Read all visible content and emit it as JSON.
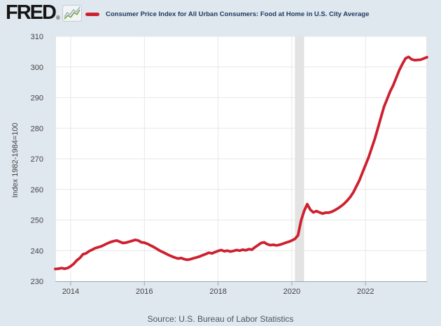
{
  "header": {
    "logo_text": "FRED",
    "registered_mark": "®",
    "series_title": "Consumer Price Index for All Urban Consumers: Food at Home in U.S. City Average"
  },
  "y_axis_title": "Index 1982-1984=100",
  "source_line": "Source: U.S. Bureau of Labor Statistics",
  "colors": {
    "background": "#dfe7ef",
    "plot_background": "#ffffff",
    "series_line": "#ce202f",
    "gridline": "#e7e7e7",
    "axis_line": "#9aa5b1",
    "tick_text": "#444444",
    "title_text": "#1c3a5e",
    "y_axis_title_text": "#444444",
    "source_text": "#4a5560",
    "recession_band": "#e3e3e3",
    "logo_text": "#151515"
  },
  "chart_data": {
    "type": "line",
    "title": "Consumer Price Index for All Urban Consumers: Food at Home in U.S. City Average",
    "ylabel": "Index 1982-1984=100",
    "xlabel": "",
    "units": "Index 1982-1984=100",
    "frequency": "monthly",
    "start_month": "2013-08",
    "end_month": "2023-09",
    "ylim": [
      230,
      310
    ],
    "yticks": [
      230,
      240,
      250,
      260,
      270,
      280,
      290,
      300,
      310
    ],
    "xticks": [
      {
        "label": "2014",
        "month": "2014-01"
      },
      {
        "label": "2016",
        "month": "2016-01"
      },
      {
        "label": "2018",
        "month": "2018-01"
      },
      {
        "label": "2020",
        "month": "2020-01"
      },
      {
        "label": "2022",
        "month": "2022-01"
      }
    ],
    "grid": true,
    "legend_position": "top",
    "recession_band": {
      "start": "2020-02",
      "end": "2020-05"
    },
    "series": [
      {
        "name": "Consumer Price Index for All Urban Consumers: Food at Home in U.S. City Average",
        "color": "#ce202f",
        "values": [
          234.0,
          234.1,
          234.3,
          234.1,
          234.3,
          234.9,
          235.7,
          236.8,
          237.6,
          238.8,
          239.1,
          239.8,
          240.3,
          240.8,
          241.1,
          241.4,
          241.9,
          242.4,
          242.8,
          243.1,
          243.3,
          242.9,
          242.5,
          242.6,
          242.9,
          243.2,
          243.5,
          243.3,
          242.7,
          242.6,
          242.2,
          241.7,
          241.2,
          240.6,
          240.0,
          239.5,
          239.0,
          238.5,
          238.1,
          237.7,
          237.4,
          237.6,
          237.2,
          237.0,
          237.2,
          237.5,
          237.8,
          238.1,
          238.5,
          238.9,
          239.3,
          239.1,
          239.5,
          239.9,
          240.2,
          239.8,
          240.0,
          239.7,
          239.9,
          240.2,
          240.0,
          240.3,
          240.1,
          240.5,
          240.3,
          241.1,
          241.8,
          242.5,
          242.7,
          242.1,
          241.8,
          241.9,
          241.7,
          241.9,
          242.2,
          242.6,
          242.9,
          243.3,
          243.8,
          245.0,
          249.8,
          253.0,
          255.2,
          253.4,
          252.5,
          252.9,
          252.5,
          252.1,
          252.4,
          252.4,
          252.7,
          253.2,
          253.8,
          254.5,
          255.3,
          256.3,
          257.5,
          259.0,
          261.0,
          263.0,
          265.5,
          268.0,
          270.5,
          273.5,
          276.5,
          280.0,
          283.5,
          287.0,
          289.5,
          292.0,
          294.0,
          296.5,
          299.0,
          301.0,
          302.8,
          303.3,
          302.5,
          302.2,
          302.3,
          302.4,
          302.8,
          303.2
        ]
      }
    ]
  }
}
